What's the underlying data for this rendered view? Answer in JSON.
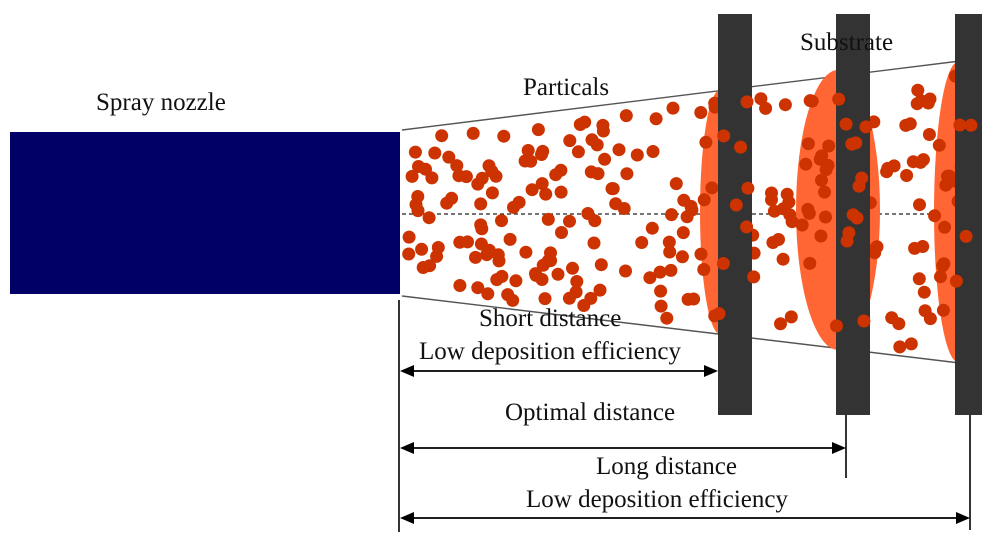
{
  "labels": {
    "nozzle": "Spray nozzle",
    "particles": "Particals",
    "substrate": "Substrate",
    "short_distance": "Short distance",
    "short_efficiency": "Low deposition efficiency",
    "optimal_distance": "Optimal distance",
    "long_distance": "Long distance",
    "long_efficiency": "Low deposition efficiency"
  },
  "colors": {
    "nozzle": "#000066",
    "particle": "#cc3300",
    "deposit": "#ff6633",
    "substrate": "#333333",
    "line": "#000000"
  }
}
